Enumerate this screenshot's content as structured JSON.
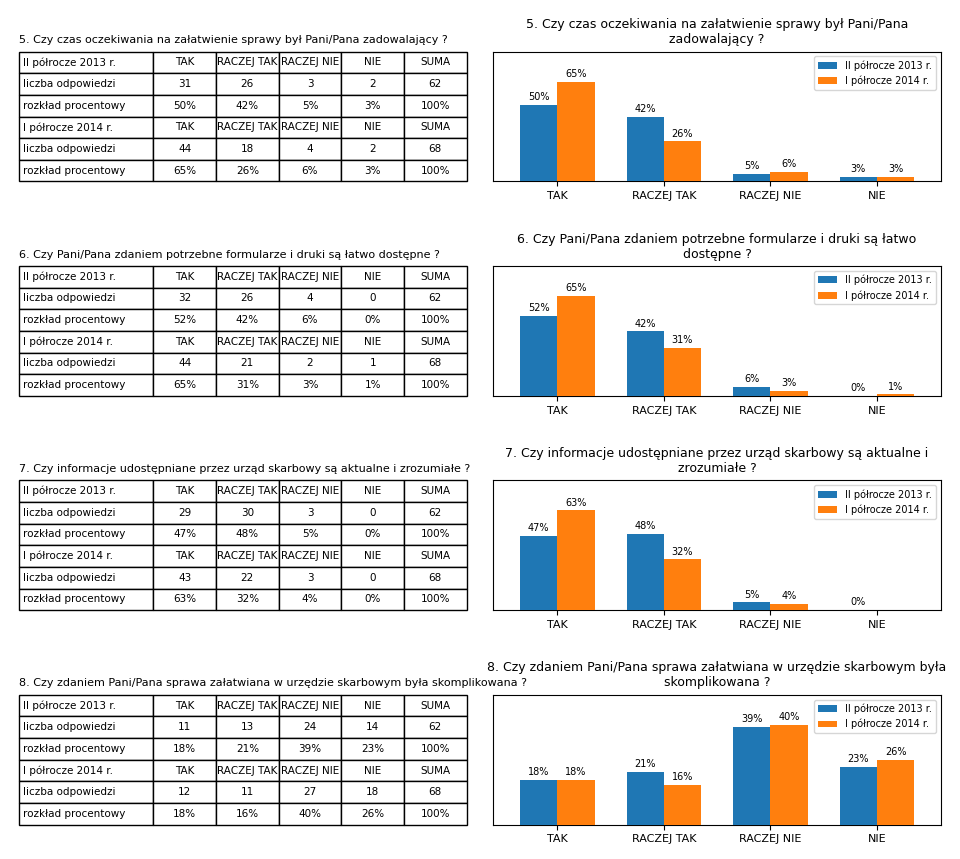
{
  "chart_data": [
    {
      "type": "table",
      "title": "5. Czy czas oczekiwania na załatwienie sprawy był Pani/Pana zadowalający ?",
      "rows": [
        [
          "II półrocze 2013 r.",
          "TAK",
          "RACZEJ TAK",
          "RACZEJ NIE",
          "NIE",
          "SUMA"
        ],
        [
          "liczba odpowiedzi",
          "31",
          "26",
          "3",
          "2",
          "62"
        ],
        [
          "rozkład procentowy",
          "50%",
          "42%",
          "5%",
          "3%",
          "100%"
        ],
        [
          "I półrocze 2014 r.",
          "TAK",
          "RACZEJ TAK",
          "RACZEJ NIE",
          "NIE",
          "SUMA"
        ],
        [
          "liczba odpowiedzi",
          "44",
          "18",
          "4",
          "2",
          "68"
        ],
        [
          "rozkład procentowy",
          "65%",
          "26%",
          "6%",
          "3%",
          "100%"
        ]
      ]
    },
    {
      "type": "bar",
      "title": "5. Czy czas oczekiwania na załatwienie sprawy był Pani/Pana\nzadowalający ?",
      "categories": [
        "TAK",
        "RACZEJ TAK",
        "RACZEJ NIE",
        "NIE"
      ],
      "series": [
        {
          "name": "II półrocze 2013 r.",
          "values": [
            50,
            42,
            5,
            3
          ],
          "value_labels": [
            "50%",
            "42%",
            "5%",
            "3%"
          ]
        },
        {
          "name": "I półrocze 2014 r.",
          "values": [
            65,
            26,
            6,
            3
          ],
          "value_labels": [
            "65%",
            "26%",
            "6%",
            "3%"
          ]
        }
      ],
      "ylim": [
        0,
        84.5
      ],
      "tick_labels": "x",
      "legend": "upper right",
      "data_labels": true
    },
    {
      "type": "table",
      "title": "6. Czy Pani/Pana zdaniem potrzebne formularze i druki są łatwo dostępne ?",
      "rows": [
        [
          "II półrocze 2013 r.",
          "TAK",
          "RACZEJ TAK",
          "RACZEJ NIE",
          "NIE",
          "SUMA"
        ],
        [
          "liczba odpowiedzi",
          "32",
          "26",
          "4",
          "0",
          "62"
        ],
        [
          "rozkład procentowy",
          "52%",
          "42%",
          "6%",
          "0%",
          "100%"
        ],
        [
          "I półrocze 2014 r.",
          "TAK",
          "RACZEJ TAK",
          "RACZEJ NIE",
          "NIE",
          "SUMA"
        ],
        [
          "liczba odpowiedzi",
          "44",
          "21",
          "2",
          "1",
          "68"
        ],
        [
          "rozkład procentowy",
          "65%",
          "31%",
          "3%",
          "1%",
          "100%"
        ]
      ]
    },
    {
      "type": "bar",
      "title": "6. Czy Pani/Pana zdaniem potrzebne formularze i druki są łatwo\ndostępne ?",
      "categories": [
        "TAK",
        "RACZEJ TAK",
        "RACZEJ NIE",
        "NIE"
      ],
      "series": [
        {
          "name": "II półrocze 2013 r.",
          "values": [
            52,
            42,
            6,
            0
          ],
          "value_labels": [
            "52%",
            "42%",
            "6%",
            "0%"
          ]
        },
        {
          "name": "I półrocze 2014 r.",
          "values": [
            65,
            31,
            3,
            1
          ],
          "value_labels": [
            "65%",
            "31%",
            "3%",
            "1%"
          ]
        }
      ],
      "ylim": [
        0,
        84.5
      ],
      "tick_labels": "x",
      "legend": "upper right",
      "data_labels": true
    },
    {
      "type": "table",
      "title": "7. Czy informacje udostępniane przez urząd skarbowy są aktualne i zrozumiałe ?",
      "rows": [
        [
          "II półrocze 2013 r.",
          "TAK",
          "RACZEJ TAK",
          "RACZEJ NIE",
          "NIE",
          "SUMA"
        ],
        [
          "liczba odpowiedzi",
          "29",
          "30",
          "3",
          "0",
          "62"
        ],
        [
          "rozkład procentowy",
          "47%",
          "48%",
          "5%",
          "0%",
          "100%"
        ],
        [
          "I półrocze 2014 r.",
          "TAK",
          "RACZEJ TAK",
          "RACZEJ NIE",
          "NIE",
          "SUMA"
        ],
        [
          "liczba odpowiedzi",
          "43",
          "22",
          "3",
          "0",
          "68"
        ],
        [
          "rozkład procentowy",
          "63%",
          "32%",
          "4%",
          "0%",
          "100%"
        ]
      ]
    },
    {
      "type": "bar",
      "title": "7. Czy informacje udostępniane przez urząd skarbowy są aktualne i\nzrozumiałe ?",
      "categories": [
        "TAK",
        "RACZEJ TAK",
        "RACZEJ NIE",
        "NIE"
      ],
      "series": [
        {
          "name": "II półrocze 2013 r.",
          "values": [
            47,
            48,
            5,
            0
          ],
          "value_labels": [
            "47%",
            "48%",
            "5%",
            "0%"
          ]
        },
        {
          "name": "I półrocze 2014 r.",
          "values": [
            63,
            32,
            4,
            0
          ],
          "value_labels": [
            "63%",
            "32%",
            "4%",
            null
          ]
        }
      ],
      "ylim": [
        0,
        81.9
      ],
      "tick_labels": "x",
      "legend": "upper right",
      "data_labels": true
    },
    {
      "type": "table",
      "title": "8. Czy zdaniem Pani/Pana sprawa załatwiana w urzędzie skarbowym była skomplikowana ?",
      "rows": [
        [
          "II półrocze 2013 r.",
          "TAK",
          "RACZEJ TAK",
          "RACZEJ NIE",
          "NIE",
          "SUMA"
        ],
        [
          "liczba odpowiedzi",
          "11",
          "13",
          "24",
          "14",
          "62"
        ],
        [
          "rozkład procentowy",
          "18%",
          "21%",
          "39%",
          "23%",
          "100%"
        ],
        [
          "I półrocze 2014 r.",
          "TAK",
          "RACZEJ TAK",
          "RACZEJ NIE",
          "NIE",
          "SUMA"
        ],
        [
          "liczba odpowiedzi",
          "12",
          "11",
          "27",
          "18",
          "68"
        ],
        [
          "rozkład procentowy",
          "18%",
          "16%",
          "40%",
          "26%",
          "100%"
        ]
      ]
    },
    {
      "type": "bar",
      "title": "8. Czy zdaniem Pani/Pana sprawa załatwiana w urzędzie skarbowym była\nskomplikowana ?",
      "categories": [
        "TAK",
        "RACZEJ TAK",
        "RACZEJ NIE",
        "NIE"
      ],
      "series": [
        {
          "name": "II półrocze 2013 r.",
          "values": [
            18,
            21,
            39,
            23
          ],
          "value_labels": [
            "18%",
            "21%",
            "39%",
            "23%"
          ]
        },
        {
          "name": "I półrocze 2014 r.",
          "values": [
            18,
            16,
            40,
            26
          ],
          "value_labels": [
            "18%",
            "16%",
            "40%",
            "26%"
          ]
        }
      ],
      "ylim": [
        0,
        52.0
      ],
      "tick_labels": "x",
      "legend": "upper right",
      "data_labels": true
    }
  ]
}
